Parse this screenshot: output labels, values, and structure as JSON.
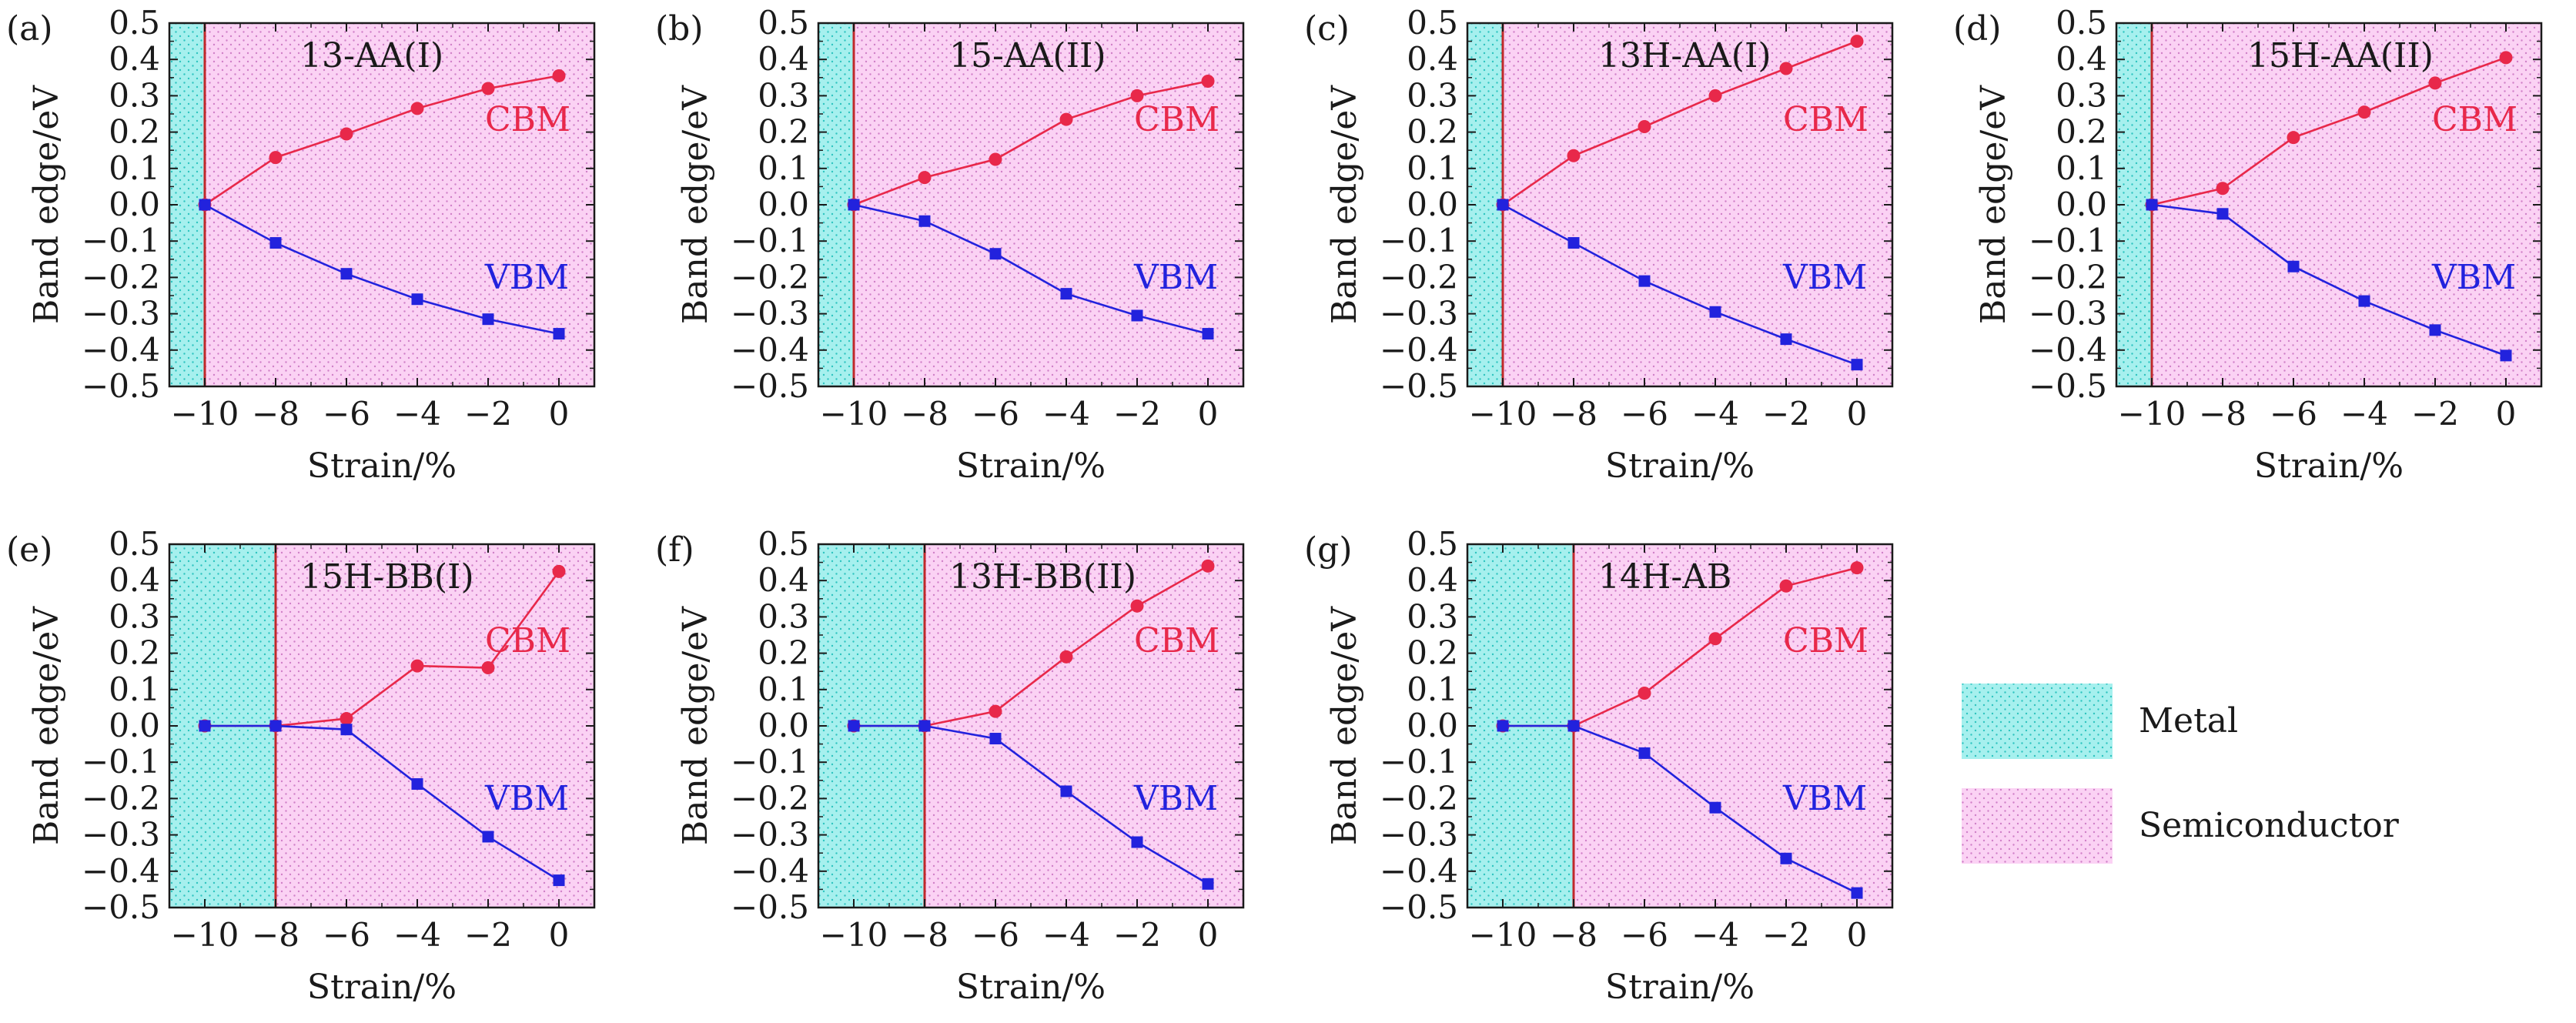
{
  "chart_data": [
    {
      "type": "line",
      "panel": "(a)",
      "title": "13-AA(I)",
      "xlabel": "Strain/%",
      "ylabel": "Band edge/eV",
      "xlim": [
        -11,
        1
      ],
      "ylim": [
        -0.5,
        0.5
      ],
      "x_ticks": [
        -10,
        -8,
        -6,
        -4,
        -2,
        0
      ],
      "y_ticks": [
        -0.5,
        -0.4,
        -0.3,
        -0.2,
        -0.1,
        0.0,
        0.1,
        0.2,
        0.3,
        0.4,
        0.5
      ],
      "boundary": -10,
      "x": [
        -10,
        -8,
        -6,
        -4,
        -2,
        0
      ],
      "series": [
        {
          "name": "CBM",
          "values": [
            0.0,
            0.13,
            0.195,
            0.265,
            0.32,
            0.355
          ]
        },
        {
          "name": "VBM",
          "values": [
            0.0,
            -0.105,
            -0.19,
            -0.26,
            -0.315,
            -0.355
          ]
        }
      ],
      "annotations": [
        "CBM",
        "VBM"
      ]
    },
    {
      "type": "line",
      "panel": "(b)",
      "title": "15-AA(II)",
      "xlabel": "Strain/%",
      "ylabel": "Band edge/eV",
      "xlim": [
        -11,
        1
      ],
      "ylim": [
        -0.5,
        0.5
      ],
      "x_ticks": [
        -10,
        -8,
        -6,
        -4,
        -2,
        0
      ],
      "y_ticks": [
        -0.5,
        -0.4,
        -0.3,
        -0.2,
        -0.1,
        0.0,
        0.1,
        0.2,
        0.3,
        0.4,
        0.5
      ],
      "boundary": -10,
      "x": [
        -10,
        -8,
        -6,
        -4,
        -2,
        0
      ],
      "series": [
        {
          "name": "CBM",
          "values": [
            0.0,
            0.075,
            0.125,
            0.235,
            0.3,
            0.34
          ]
        },
        {
          "name": "VBM",
          "values": [
            0.0,
            -0.045,
            -0.135,
            -0.245,
            -0.305,
            -0.355
          ]
        }
      ],
      "annotations": [
        "CBM",
        "VBM"
      ]
    },
    {
      "type": "line",
      "panel": "(c)",
      "title": "13H-AA(I)",
      "xlabel": "Strain/%",
      "ylabel": "Band edge/eV",
      "xlim": [
        -11,
        1
      ],
      "ylim": [
        -0.5,
        0.5
      ],
      "x_ticks": [
        -10,
        -8,
        -6,
        -4,
        -2,
        0
      ],
      "y_ticks": [
        -0.5,
        -0.4,
        -0.3,
        -0.2,
        -0.1,
        0.0,
        0.1,
        0.2,
        0.3,
        0.4,
        0.5
      ],
      "boundary": -10,
      "x": [
        -10,
        -8,
        -6,
        -4,
        -2,
        0
      ],
      "series": [
        {
          "name": "CBM",
          "values": [
            0.0,
            0.135,
            0.215,
            0.3,
            0.375,
            0.45
          ]
        },
        {
          "name": "VBM",
          "values": [
            0.0,
            -0.105,
            -0.21,
            -0.295,
            -0.37,
            -0.44
          ]
        }
      ],
      "annotations": [
        "CBM",
        "VBM"
      ]
    },
    {
      "type": "line",
      "panel": "(d)",
      "title": "15H-AA(II)",
      "xlabel": "Strain/%",
      "ylabel": "Band edge/eV",
      "xlim": [
        -11,
        1
      ],
      "ylim": [
        -0.5,
        0.5
      ],
      "x_ticks": [
        -10,
        -8,
        -6,
        -4,
        -2,
        0
      ],
      "y_ticks": [
        -0.5,
        -0.4,
        -0.3,
        -0.2,
        -0.1,
        0.0,
        0.1,
        0.2,
        0.3,
        0.4,
        0.5
      ],
      "boundary": -10,
      "x": [
        -10,
        -8,
        -6,
        -4,
        -2,
        0
      ],
      "series": [
        {
          "name": "CBM",
          "values": [
            0.0,
            0.045,
            0.185,
            0.255,
            0.335,
            0.405
          ]
        },
        {
          "name": "VBM",
          "values": [
            0.0,
            -0.025,
            -0.17,
            -0.265,
            -0.345,
            -0.415
          ]
        }
      ],
      "annotations": [
        "CBM",
        "VBM"
      ]
    },
    {
      "type": "line",
      "panel": "(e)",
      "title": "15H-BB(I)",
      "xlabel": "Strain/%",
      "ylabel": "Band edge/eV",
      "xlim": [
        -11,
        1
      ],
      "ylim": [
        -0.5,
        0.5
      ],
      "x_ticks": [
        -10,
        -8,
        -6,
        -4,
        -2,
        0
      ],
      "y_ticks": [
        -0.5,
        -0.4,
        -0.3,
        -0.2,
        -0.1,
        0.0,
        0.1,
        0.2,
        0.3,
        0.4,
        0.5
      ],
      "boundary": -8,
      "x": [
        -10,
        -8,
        -6,
        -4,
        -2,
        0
      ],
      "series": [
        {
          "name": "CBM",
          "values": [
            0.0,
            0.0,
            0.02,
            0.165,
            0.16,
            0.425
          ]
        },
        {
          "name": "VBM",
          "values": [
            0.0,
            0.0,
            -0.01,
            -0.16,
            -0.305,
            -0.425
          ]
        }
      ],
      "annotations": [
        "CBM",
        "VBM"
      ]
    },
    {
      "type": "line",
      "panel": "(f)",
      "title": "13H-BB(II)",
      "xlabel": "Strain/%",
      "ylabel": "Band edge/eV",
      "xlim": [
        -11,
        1
      ],
      "ylim": [
        -0.5,
        0.5
      ],
      "x_ticks": [
        -10,
        -8,
        -6,
        -4,
        -2,
        0
      ],
      "y_ticks": [
        -0.5,
        -0.4,
        -0.3,
        -0.2,
        -0.1,
        0.0,
        0.1,
        0.2,
        0.3,
        0.4,
        0.5
      ],
      "boundary": -8,
      "x": [
        -10,
        -8,
        -6,
        -4,
        -2,
        0
      ],
      "series": [
        {
          "name": "CBM",
          "values": [
            0.0,
            0.0,
            0.04,
            0.19,
            0.33,
            0.44
          ]
        },
        {
          "name": "VBM",
          "values": [
            0.0,
            0.0,
            -0.035,
            -0.18,
            -0.32,
            -0.435
          ]
        }
      ],
      "annotations": [
        "CBM",
        "VBM"
      ]
    },
    {
      "type": "line",
      "panel": "(g)",
      "title": "14H-AB",
      "xlabel": "Strain/%",
      "ylabel": "Band edge/eV",
      "xlim": [
        -11,
        1
      ],
      "ylim": [
        -0.5,
        0.5
      ],
      "x_ticks": [
        -10,
        -8,
        -6,
        -4,
        -2,
        0
      ],
      "y_ticks": [
        -0.5,
        -0.4,
        -0.3,
        -0.2,
        -0.1,
        0.0,
        0.1,
        0.2,
        0.3,
        0.4,
        0.5
      ],
      "boundary": -8,
      "x": [
        -10,
        -8,
        -6,
        -4,
        -2,
        0
      ],
      "series": [
        {
          "name": "CBM",
          "values": [
            0.0,
            0.0,
            0.09,
            0.24,
            0.385,
            0.435
          ]
        },
        {
          "name": "VBM",
          "values": [
            0.0,
            0.0,
            -0.075,
            -0.225,
            -0.365,
            -0.46
          ]
        }
      ],
      "annotations": [
        "CBM",
        "VBM"
      ]
    }
  ],
  "legend": {
    "metal": "Metal",
    "semiconductor": "Semiconductor"
  },
  "colors": {
    "cbm": "#e8284a",
    "vbm": "#2222dd",
    "metal_fill": "#a6f0ee",
    "metal_dot": "#2ec4c0",
    "semi_fill": "#fbd2f4",
    "semi_dot": "#d080c8",
    "boundary": "#c0282a",
    "axis": "#1a1a1a"
  }
}
